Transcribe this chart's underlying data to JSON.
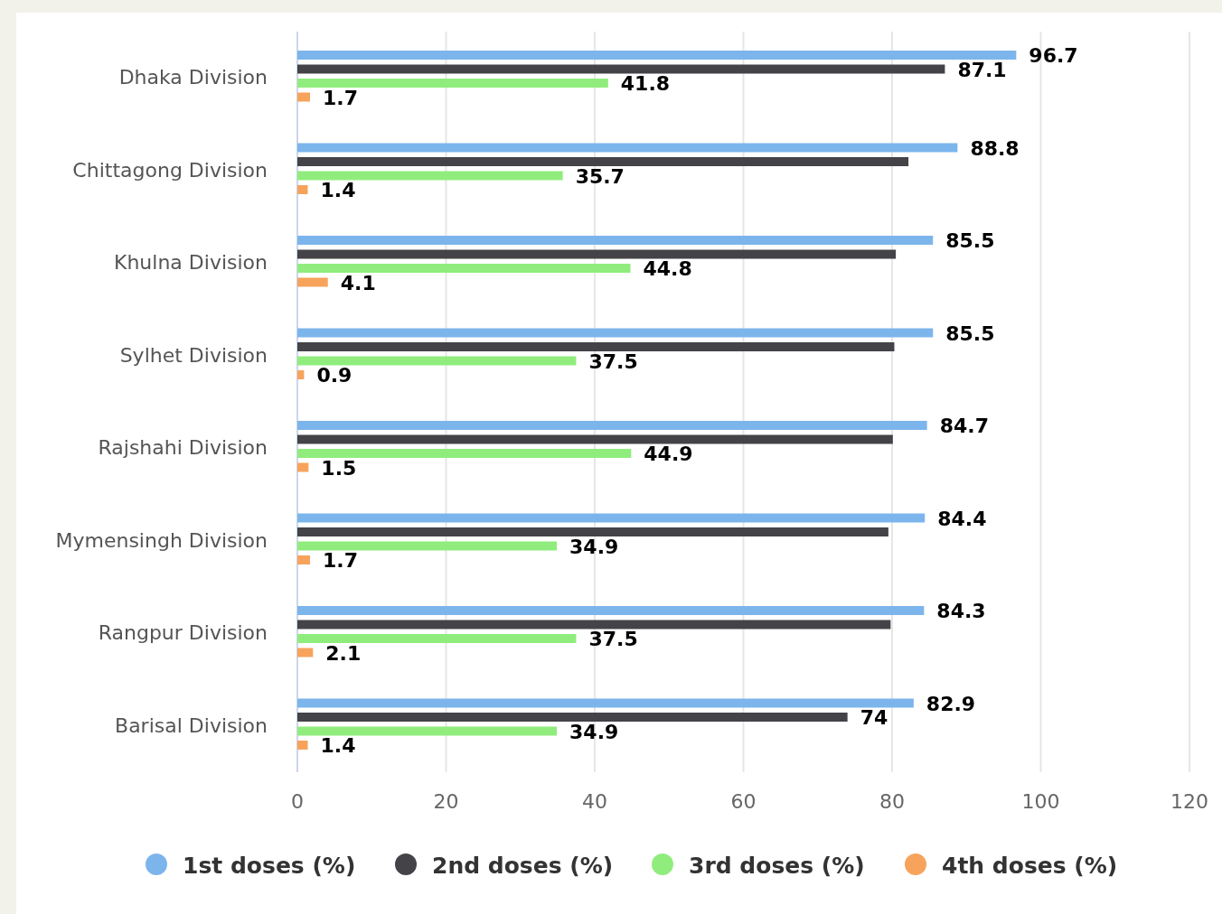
{
  "chart_data": {
    "type": "bar",
    "orientation": "horizontal",
    "categories": [
      "Dhaka Division",
      "Chittagong Division",
      "Khulna Division",
      "Sylhet Division",
      "Rajshahi Division",
      "Mymensingh Division",
      "Rangpur Division",
      "Barisal Division"
    ],
    "series": [
      {
        "name": "1st doses (%)",
        "color": "#7cb5ec",
        "values": [
          96.7,
          88.8,
          85.5,
          85.5,
          84.7,
          84.4,
          84.3,
          82.9
        ],
        "value_labels": [
          "96.7",
          "88.8",
          "85.5",
          "85.5",
          "84.7",
          "84.4",
          "84.3",
          "82.9"
        ]
      },
      {
        "name": "2nd doses (%)",
        "color": "#434348",
        "values": [
          87.1,
          82.2,
          80.5,
          80.3,
          80.1,
          79.5,
          79.8,
          74
        ],
        "value_labels": [
          "87.1",
          null,
          null,
          null,
          null,
          null,
          null,
          "74"
        ]
      },
      {
        "name": "3rd doses (%)",
        "color": "#90ed7d",
        "values": [
          41.8,
          35.7,
          44.8,
          37.5,
          44.9,
          34.9,
          37.5,
          34.9
        ],
        "value_labels": [
          "41.8",
          "35.7",
          "44.8",
          "37.5",
          "44.9",
          "34.9",
          "37.5",
          "34.9"
        ]
      },
      {
        "name": "4th doses (%)",
        "color": "#f7a35c",
        "values": [
          1.7,
          1.4,
          4.1,
          0.9,
          1.5,
          1.7,
          2.1,
          1.4
        ],
        "value_labels": [
          "1.7",
          "1.4",
          "4.1",
          "0.9",
          "1.5",
          "1.7",
          "2.1",
          "1.4"
        ]
      }
    ],
    "xlim": [
      0,
      120
    ],
    "xticks": [
      0,
      20,
      40,
      60,
      80,
      100,
      120
    ],
    "grid": "x",
    "legend": "bottom"
  }
}
